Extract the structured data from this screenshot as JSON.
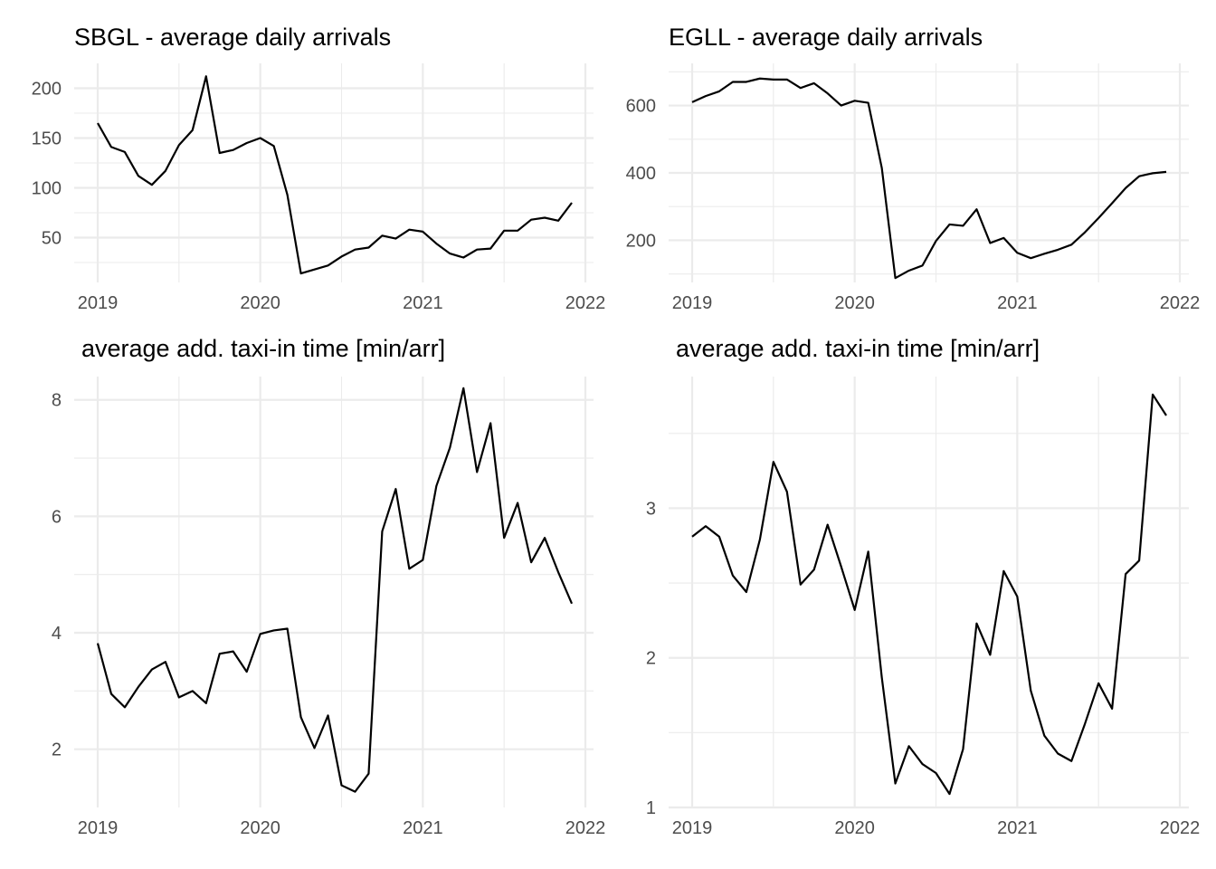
{
  "chart_data": [
    {
      "type": "line",
      "title": "SBGL - average daily arrivals",
      "xlabel": "",
      "ylabel": "",
      "x_ticks": [
        "2019",
        "2020",
        "2021",
        "2022"
      ],
      "y_ticks": [
        50,
        100,
        150,
        200
      ],
      "xlim": [
        "2019-01",
        "2022-01"
      ],
      "ylim": [
        5,
        225
      ],
      "grid": true,
      "x": [
        "2019-01",
        "2019-02",
        "2019-03",
        "2019-04",
        "2019-05",
        "2019-06",
        "2019-07",
        "2019-08",
        "2019-09",
        "2019-10",
        "2019-11",
        "2019-12",
        "2020-01",
        "2020-02",
        "2020-03",
        "2020-04",
        "2020-05",
        "2020-06",
        "2020-07",
        "2020-08",
        "2020-09",
        "2020-10",
        "2020-11",
        "2020-12",
        "2021-01",
        "2021-02",
        "2021-03",
        "2021-04",
        "2021-05",
        "2021-06",
        "2021-07",
        "2021-08",
        "2021-09",
        "2021-10",
        "2021-11",
        "2021-12"
      ],
      "values": [
        165,
        141,
        136,
        112,
        103,
        117,
        143,
        158,
        212,
        135,
        138,
        145,
        150,
        142,
        93,
        14,
        18,
        22,
        31,
        38,
        40,
        52,
        49,
        58,
        56,
        44,
        34,
        30,
        38,
        39,
        57,
        57,
        68,
        70,
        67,
        85
      ]
    },
    {
      "type": "line",
      "title": "EGLL - average daily arrivals",
      "xlabel": "",
      "ylabel": "",
      "x_ticks": [
        "2019",
        "2020",
        "2021",
        "2022"
      ],
      "y_ticks": [
        200,
        400,
        600
      ],
      "xlim": [
        "2019-01",
        "2022-01"
      ],
      "ylim": [
        75,
        725
      ],
      "grid": true,
      "x": [
        "2019-01",
        "2019-02",
        "2019-03",
        "2019-04",
        "2019-05",
        "2019-06",
        "2019-07",
        "2019-08",
        "2019-09",
        "2019-10",
        "2019-11",
        "2019-12",
        "2020-01",
        "2020-02",
        "2020-03",
        "2020-04",
        "2020-05",
        "2020-06",
        "2020-07",
        "2020-08",
        "2020-09",
        "2020-10",
        "2020-11",
        "2020-12",
        "2021-01",
        "2021-02",
        "2021-03",
        "2021-04",
        "2021-05",
        "2021-06",
        "2021-07",
        "2021-08",
        "2021-09",
        "2021-10",
        "2021-11",
        "2021-12"
      ],
      "values": [
        610,
        628,
        642,
        670,
        670,
        680,
        677,
        677,
        652,
        666,
        636,
        600,
        614,
        608,
        415,
        88,
        110,
        125,
        198,
        247,
        243,
        292,
        192,
        207,
        163,
        147,
        160,
        172,
        187,
        224,
        266,
        310,
        355,
        390,
        399,
        403
      ]
    },
    {
      "type": "line",
      "title": "average add. taxi-in time [min/arr]",
      "xlabel": "",
      "ylabel": "",
      "x_ticks": [
        "2019",
        "2020",
        "2021",
        "2022"
      ],
      "y_ticks": [
        2,
        4,
        6,
        8
      ],
      "xlim": [
        "2019-01",
        "2022-01"
      ],
      "ylim": [
        1,
        8.4
      ],
      "grid": true,
      "x": [
        "2019-01",
        "2019-02",
        "2019-03",
        "2019-04",
        "2019-05",
        "2019-06",
        "2019-07",
        "2019-08",
        "2019-09",
        "2019-10",
        "2019-11",
        "2019-12",
        "2020-01",
        "2020-02",
        "2020-03",
        "2020-04",
        "2020-05",
        "2020-06",
        "2020-07",
        "2020-08",
        "2020-09",
        "2020-10",
        "2020-11",
        "2020-12",
        "2021-01",
        "2021-02",
        "2021-03",
        "2021-04",
        "2021-05",
        "2021-06",
        "2021-07",
        "2021-08",
        "2021-09",
        "2021-10",
        "2021-11",
        "2021-12"
      ],
      "values": [
        3.82,
        2.95,
        2.72,
        3.07,
        3.37,
        3.5,
        2.89,
        3.0,
        2.79,
        3.64,
        3.68,
        3.33,
        3.98,
        4.04,
        4.07,
        2.55,
        2.02,
        2.58,
        1.38,
        1.27,
        1.58,
        5.74,
        6.47,
        5.1,
        5.25,
        6.52,
        7.18,
        8.2,
        6.76,
        7.6,
        5.63,
        6.23,
        5.21,
        5.63,
        5.04,
        4.5
      ]
    },
    {
      "type": "line",
      "title": "average add. taxi-in time [min/arr]",
      "xlabel": "",
      "ylabel": "",
      "x_ticks": [
        "2019",
        "2020",
        "2021",
        "2022"
      ],
      "y_ticks": [
        1,
        2,
        3
      ],
      "xlim": [
        "2019-01",
        "2022-01"
      ],
      "ylim": [
        1,
        3.88
      ],
      "grid": true,
      "x": [
        "2019-01",
        "2019-02",
        "2019-03",
        "2019-04",
        "2019-05",
        "2019-06",
        "2019-07",
        "2019-08",
        "2019-09",
        "2019-10",
        "2019-11",
        "2019-12",
        "2020-01",
        "2020-02",
        "2020-03",
        "2020-04",
        "2020-05",
        "2020-06",
        "2020-07",
        "2020-08",
        "2020-09",
        "2020-10",
        "2020-11",
        "2020-12",
        "2021-01",
        "2021-02",
        "2021-03",
        "2021-04",
        "2021-05",
        "2021-06",
        "2021-07",
        "2021-08",
        "2021-09",
        "2021-10",
        "2021-11",
        "2021-12"
      ],
      "values": [
        2.81,
        2.88,
        2.81,
        2.55,
        2.44,
        2.79,
        3.31,
        3.11,
        2.49,
        2.59,
        2.89,
        2.61,
        2.32,
        2.71,
        1.87,
        1.16,
        1.41,
        1.29,
        1.23,
        1.09,
        1.39,
        2.23,
        2.02,
        2.58,
        2.41,
        1.78,
        1.48,
        1.36,
        1.31,
        1.56,
        1.83,
        1.66,
        2.56,
        2.65,
        3.76,
        3.62
      ]
    }
  ]
}
